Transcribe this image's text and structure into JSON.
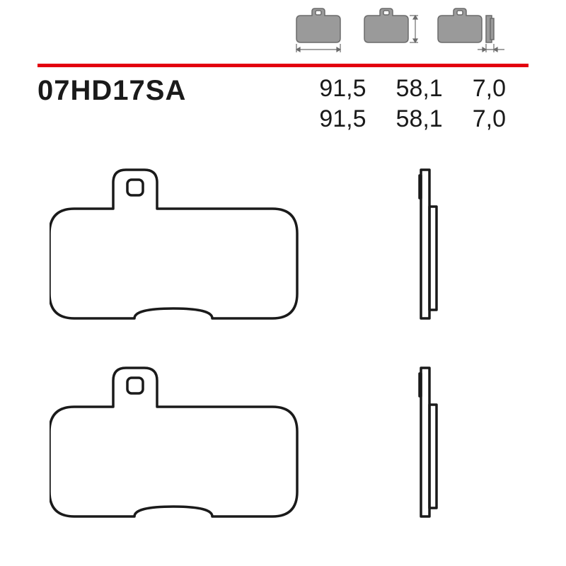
{
  "partNumber": "07HD17SA",
  "specs": {
    "row1": {
      "width": "91,5",
      "height": "58,1",
      "thickness": "7,0"
    },
    "row2": {
      "width": "91,5",
      "height": "58,1",
      "thickness": "7,0"
    }
  },
  "colors": {
    "redLine": "#e3000f",
    "outline": "#1a1a1a",
    "iconFill": "#9a9a9a",
    "iconStroke": "#6b6b6b",
    "text": "#1a1a1a",
    "bg": "#ffffff"
  },
  "typography": {
    "partNumberSize": 40,
    "specSize": 34
  },
  "layout": {
    "redLineTop": 90,
    "specTop": 106,
    "headerIconHeight": 65
  },
  "drawing": {
    "strokeWidth": 3.5,
    "pad": {
      "bodyWidth": 350,
      "bodyHeight": 200,
      "cornerRadius": 36,
      "tabWidth": 56,
      "tabHeight": 48,
      "tabHoleSize": 20,
      "notchWidth": 110,
      "notchDepth": 14
    },
    "side": {
      "width": 20,
      "plateWidth": 10
    }
  }
}
